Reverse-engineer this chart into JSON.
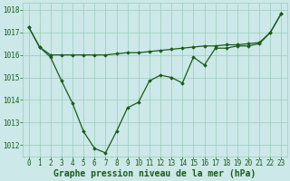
{
  "line1_x": [
    0,
    1,
    2,
    3,
    4,
    5,
    6,
    7,
    8,
    9,
    10,
    11,
    12,
    13,
    14,
    15,
    16,
    17,
    18,
    19,
    20,
    21,
    22,
    23
  ],
  "line1_y": [
    1017.25,
    1016.35,
    1016.0,
    1016.0,
    1016.0,
    1016.0,
    1016.0,
    1016.0,
    1016.05,
    1016.1,
    1016.1,
    1016.15,
    1016.2,
    1016.25,
    1016.3,
    1016.35,
    1016.4,
    1016.4,
    1016.45,
    1016.45,
    1016.5,
    1016.55,
    1017.0,
    1017.85
  ],
  "line2_x": [
    0,
    1,
    2,
    3,
    4,
    5,
    6,
    7,
    8,
    9,
    10,
    11,
    12,
    13,
    14,
    15,
    16,
    17,
    18,
    19,
    20,
    21,
    22,
    23
  ],
  "line2_y": [
    1017.25,
    1016.35,
    1015.9,
    1014.85,
    1013.85,
    1012.6,
    1011.85,
    1011.65,
    1012.6,
    1013.65,
    1013.9,
    1014.85,
    1015.1,
    1015.0,
    1014.75,
    1015.9,
    1015.55,
    1016.3,
    1016.3,
    1016.4,
    1016.4,
    1016.5,
    1017.0,
    1017.85
  ],
  "ylim": [
    1011.5,
    1018.3
  ],
  "yticks": [
    1012,
    1013,
    1014,
    1015,
    1016,
    1017,
    1018
  ],
  "xlim": [
    -0.5,
    23.5
  ],
  "xticks": [
    0,
    1,
    2,
    3,
    4,
    5,
    6,
    7,
    8,
    9,
    10,
    11,
    12,
    13,
    14,
    15,
    16,
    17,
    18,
    19,
    20,
    21,
    22,
    23
  ],
  "xlabel": "Graphe pression niveau de la mer (hPa)",
  "line_color": "#1a5c1a",
  "marker": "D",
  "marker_size": 1.8,
  "bg_color": "#cce8e8",
  "grid_color": "#99ccbb",
  "tick_label_color": "#1a5c1a",
  "xlabel_color": "#1a5c1a",
  "tick_fontsize": 5.5,
  "xlabel_fontsize": 7.0,
  "linewidth": 0.9
}
